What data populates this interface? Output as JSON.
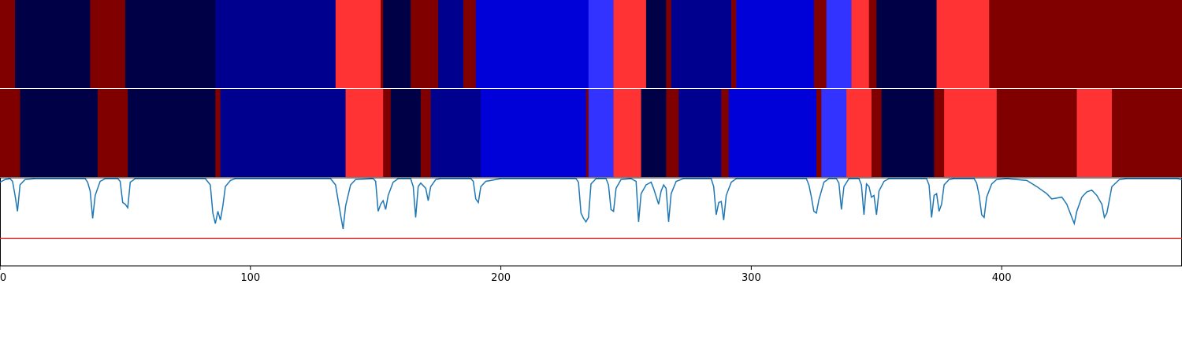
{
  "chart_data": [
    {
      "type": "heatmap",
      "name": "upper-segment-strip",
      "xlim": [
        0,
        472
      ],
      "palette": {
        "0": "#000047",
        "1": "#00008f",
        "2": "#0000d9",
        "3": "#3333ff",
        "4": "#ff3333",
        "5": "#800000"
      },
      "segments": [
        {
          "start": 0,
          "end": 6,
          "level": 5
        },
        {
          "start": 6,
          "end": 36,
          "level": 0
        },
        {
          "start": 36,
          "end": 50,
          "level": 5
        },
        {
          "start": 50,
          "end": 86,
          "level": 0
        },
        {
          "start": 86,
          "end": 134,
          "level": 1
        },
        {
          "start": 134,
          "end": 152,
          "level": 4
        },
        {
          "start": 152,
          "end": 153,
          "level": 5
        },
        {
          "start": 153,
          "end": 164,
          "level": 0
        },
        {
          "start": 164,
          "end": 175,
          "level": 5
        },
        {
          "start": 175,
          "end": 185,
          "level": 1
        },
        {
          "start": 185,
          "end": 190,
          "level": 5
        },
        {
          "start": 190,
          "end": 235,
          "level": 2
        },
        {
          "start": 235,
          "end": 245,
          "level": 3
        },
        {
          "start": 245,
          "end": 258,
          "level": 4
        },
        {
          "start": 258,
          "end": 266,
          "level": 0
        },
        {
          "start": 266,
          "end": 268,
          "level": 5
        },
        {
          "start": 268,
          "end": 292,
          "level": 1
        },
        {
          "start": 292,
          "end": 294,
          "level": 5
        },
        {
          "start": 294,
          "end": 325,
          "level": 2
        },
        {
          "start": 325,
          "end": 330,
          "level": 5
        },
        {
          "start": 330,
          "end": 340,
          "level": 3
        },
        {
          "start": 340,
          "end": 347,
          "level": 4
        },
        {
          "start": 347,
          "end": 350,
          "level": 5
        },
        {
          "start": 350,
          "end": 374,
          "level": 0
        },
        {
          "start": 374,
          "end": 395,
          "level": 4
        },
        {
          "start": 395,
          "end": 472,
          "level": 5
        }
      ]
    },
    {
      "type": "heatmap",
      "name": "lower-segment-strip",
      "xlim": [
        0,
        472
      ],
      "segments": [
        {
          "start": 0,
          "end": 8,
          "level": 5
        },
        {
          "start": 8,
          "end": 39,
          "level": 0
        },
        {
          "start": 39,
          "end": 51,
          "level": 5
        },
        {
          "start": 51,
          "end": 86,
          "level": 0
        },
        {
          "start": 86,
          "end": 88,
          "level": 5
        },
        {
          "start": 88,
          "end": 138,
          "level": 1
        },
        {
          "start": 138,
          "end": 153,
          "level": 4
        },
        {
          "start": 153,
          "end": 156,
          "level": 5
        },
        {
          "start": 156,
          "end": 168,
          "level": 0
        },
        {
          "start": 168,
          "end": 172,
          "level": 5
        },
        {
          "start": 172,
          "end": 192,
          "level": 1
        },
        {
          "start": 192,
          "end": 234,
          "level": 2
        },
        {
          "start": 234,
          "end": 235,
          "level": 5
        },
        {
          "start": 235,
          "end": 245,
          "level": 3
        },
        {
          "start": 245,
          "end": 256,
          "level": 4
        },
        {
          "start": 256,
          "end": 266,
          "level": 0
        },
        {
          "start": 266,
          "end": 271,
          "level": 5
        },
        {
          "start": 271,
          "end": 288,
          "level": 1
        },
        {
          "start": 288,
          "end": 291,
          "level": 5
        },
        {
          "start": 291,
          "end": 326,
          "level": 2
        },
        {
          "start": 326,
          "end": 328,
          "level": 5
        },
        {
          "start": 328,
          "end": 338,
          "level": 3
        },
        {
          "start": 338,
          "end": 348,
          "level": 4
        },
        {
          "start": 348,
          "end": 352,
          "level": 5
        },
        {
          "start": 352,
          "end": 373,
          "level": 0
        },
        {
          "start": 373,
          "end": 377,
          "level": 5
        },
        {
          "start": 377,
          "end": 398,
          "level": 4
        },
        {
          "start": 398,
          "end": 430,
          "level": 5
        },
        {
          "start": 430,
          "end": 444,
          "level": 4
        },
        {
          "start": 444,
          "end": 472,
          "level": 5
        }
      ]
    },
    {
      "type": "line",
      "name": "signal-with-threshold",
      "xlim": [
        0,
        472
      ],
      "ylim": [
        0,
        1
      ],
      "xticks": [
        "0",
        "100",
        "200",
        "300",
        "400"
      ],
      "xtick_values": [
        0,
        100,
        200,
        300,
        400
      ],
      "grid": false,
      "series": [
        {
          "color": "#1f77b4",
          "points": [
            [
              0,
              0.95
            ],
            [
              2,
              0.98
            ],
            [
              4,
              0.99
            ],
            [
              5,
              0.96
            ],
            [
              6,
              0.8
            ],
            [
              7,
              0.62
            ],
            [
              8,
              0.92
            ],
            [
              10,
              0.98
            ],
            [
              14,
              0.99
            ],
            [
              34,
              0.99
            ],
            [
              35,
              0.95
            ],
            [
              36,
              0.85
            ],
            [
              37,
              0.54
            ],
            [
              38,
              0.8
            ],
            [
              40,
              0.96
            ],
            [
              42,
              0.99
            ],
            [
              47,
              0.99
            ],
            [
              48,
              0.96
            ],
            [
              49,
              0.72
            ],
            [
              50,
              0.7
            ],
            [
              51,
              0.66
            ],
            [
              52,
              0.95
            ],
            [
              54,
              0.99
            ],
            [
              82,
              0.99
            ],
            [
              84,
              0.92
            ],
            [
              85,
              0.6
            ],
            [
              86,
              0.48
            ],
            [
              87,
              0.62
            ],
            [
              88,
              0.52
            ],
            [
              89,
              0.68
            ],
            [
              90,
              0.9
            ],
            [
              92,
              0.97
            ],
            [
              94,
              0.99
            ],
            [
              132,
              0.99
            ],
            [
              134,
              0.92
            ],
            [
              136,
              0.58
            ],
            [
              137,
              0.42
            ],
            [
              138,
              0.68
            ],
            [
              140,
              0.92
            ],
            [
              142,
              0.98
            ],
            [
              149,
              0.99
            ],
            [
              150,
              0.96
            ],
            [
              151,
              0.62
            ],
            [
              152,
              0.7
            ],
            [
              153,
              0.74
            ],
            [
              154,
              0.64
            ],
            [
              155,
              0.8
            ],
            [
              157,
              0.95
            ],
            [
              159,
              0.99
            ],
            [
              164,
              0.99
            ],
            [
              165,
              0.9
            ],
            [
              166,
              0.55
            ],
            [
              167,
              0.9
            ],
            [
              168,
              0.94
            ],
            [
              170,
              0.88
            ],
            [
              171,
              0.74
            ],
            [
              172,
              0.9
            ],
            [
              174,
              0.98
            ],
            [
              176,
              0.99
            ],
            [
              188,
              0.99
            ],
            [
              189,
              0.96
            ],
            [
              190,
              0.76
            ],
            [
              191,
              0.72
            ],
            [
              192,
              0.9
            ],
            [
              194,
              0.96
            ],
            [
              200,
              0.99
            ],
            [
              230,
              0.99
            ],
            [
              231,
              0.95
            ],
            [
              232,
              0.6
            ],
            [
              233,
              0.54
            ],
            [
              234,
              0.5
            ],
            [
              235,
              0.55
            ],
            [
              236,
              0.93
            ],
            [
              238,
              0.99
            ],
            [
              242,
              0.99
            ],
            [
              243,
              0.92
            ],
            [
              244,
              0.64
            ],
            [
              245,
              0.62
            ],
            [
              246,
              0.88
            ],
            [
              248,
              0.98
            ],
            [
              252,
              0.99
            ],
            [
              254,
              0.96
            ],
            [
              255,
              0.5
            ],
            [
              256,
              0.82
            ],
            [
              258,
              0.92
            ],
            [
              260,
              0.95
            ],
            [
              261,
              0.88
            ],
            [
              263,
              0.7
            ],
            [
              264,
              0.85
            ],
            [
              265,
              0.92
            ],
            [
              266,
              0.88
            ],
            [
              267,
              0.5
            ],
            [
              268,
              0.82
            ],
            [
              270,
              0.96
            ],
            [
              273,
              0.99
            ],
            [
              284,
              0.99
            ],
            [
              285,
              0.9
            ],
            [
              286,
              0.58
            ],
            [
              287,
              0.72
            ],
            [
              288,
              0.73
            ],
            [
              289,
              0.52
            ],
            [
              290,
              0.8
            ],
            [
              292,
              0.95
            ],
            [
              294,
              0.99
            ],
            [
              322,
              0.99
            ],
            [
              323,
              0.92
            ],
            [
              324,
              0.78
            ],
            [
              325,
              0.62
            ],
            [
              326,
              0.6
            ],
            [
              327,
              0.75
            ],
            [
              329,
              0.95
            ],
            [
              331,
              0.99
            ],
            [
              334,
              0.99
            ],
            [
              335,
              0.94
            ],
            [
              336,
              0.64
            ],
            [
              337,
              0.9
            ],
            [
              339,
              0.99
            ],
            [
              343,
              0.99
            ],
            [
              344,
              0.92
            ],
            [
              345,
              0.58
            ],
            [
              346,
              0.93
            ],
            [
              347,
              0.9
            ],
            [
              348,
              0.78
            ],
            [
              349,
              0.8
            ],
            [
              350,
              0.58
            ],
            [
              351,
              0.85
            ],
            [
              353,
              0.96
            ],
            [
              355,
              0.99
            ],
            [
              370,
              0.99
            ],
            [
              371,
              0.92
            ],
            [
              372,
              0.55
            ],
            [
              373,
              0.8
            ],
            [
              374,
              0.82
            ],
            [
              375,
              0.62
            ],
            [
              376,
              0.7
            ],
            [
              377,
              0.92
            ],
            [
              379,
              0.98
            ],
            [
              381,
              0.99
            ],
            [
              389,
              0.99
            ],
            [
              390,
              0.94
            ],
            [
              391,
              0.8
            ],
            [
              392,
              0.58
            ],
            [
              393,
              0.55
            ],
            [
              394,
              0.78
            ],
            [
              396,
              0.93
            ],
            [
              398,
              0.98
            ],
            [
              402,
              0.99
            ],
            [
              410,
              0.97
            ],
            [
              414,
              0.9
            ],
            [
              418,
              0.82
            ],
            [
              420,
              0.76
            ],
            [
              424,
              0.78
            ],
            [
              426,
              0.7
            ],
            [
              428,
              0.55
            ],
            [
              429,
              0.48
            ],
            [
              430,
              0.62
            ],
            [
              432,
              0.78
            ],
            [
              434,
              0.84
            ],
            [
              436,
              0.86
            ],
            [
              438,
              0.8
            ],
            [
              440,
              0.7
            ],
            [
              441,
              0.55
            ],
            [
              442,
              0.6
            ],
            [
              444,
              0.9
            ],
            [
              447,
              0.98
            ],
            [
              450,
              0.99
            ],
            [
              470,
              0.99
            ],
            [
              472,
              0.98
            ]
          ]
        }
      ],
      "threshold": {
        "y": 0.31,
        "color": "#d62728"
      }
    }
  ]
}
